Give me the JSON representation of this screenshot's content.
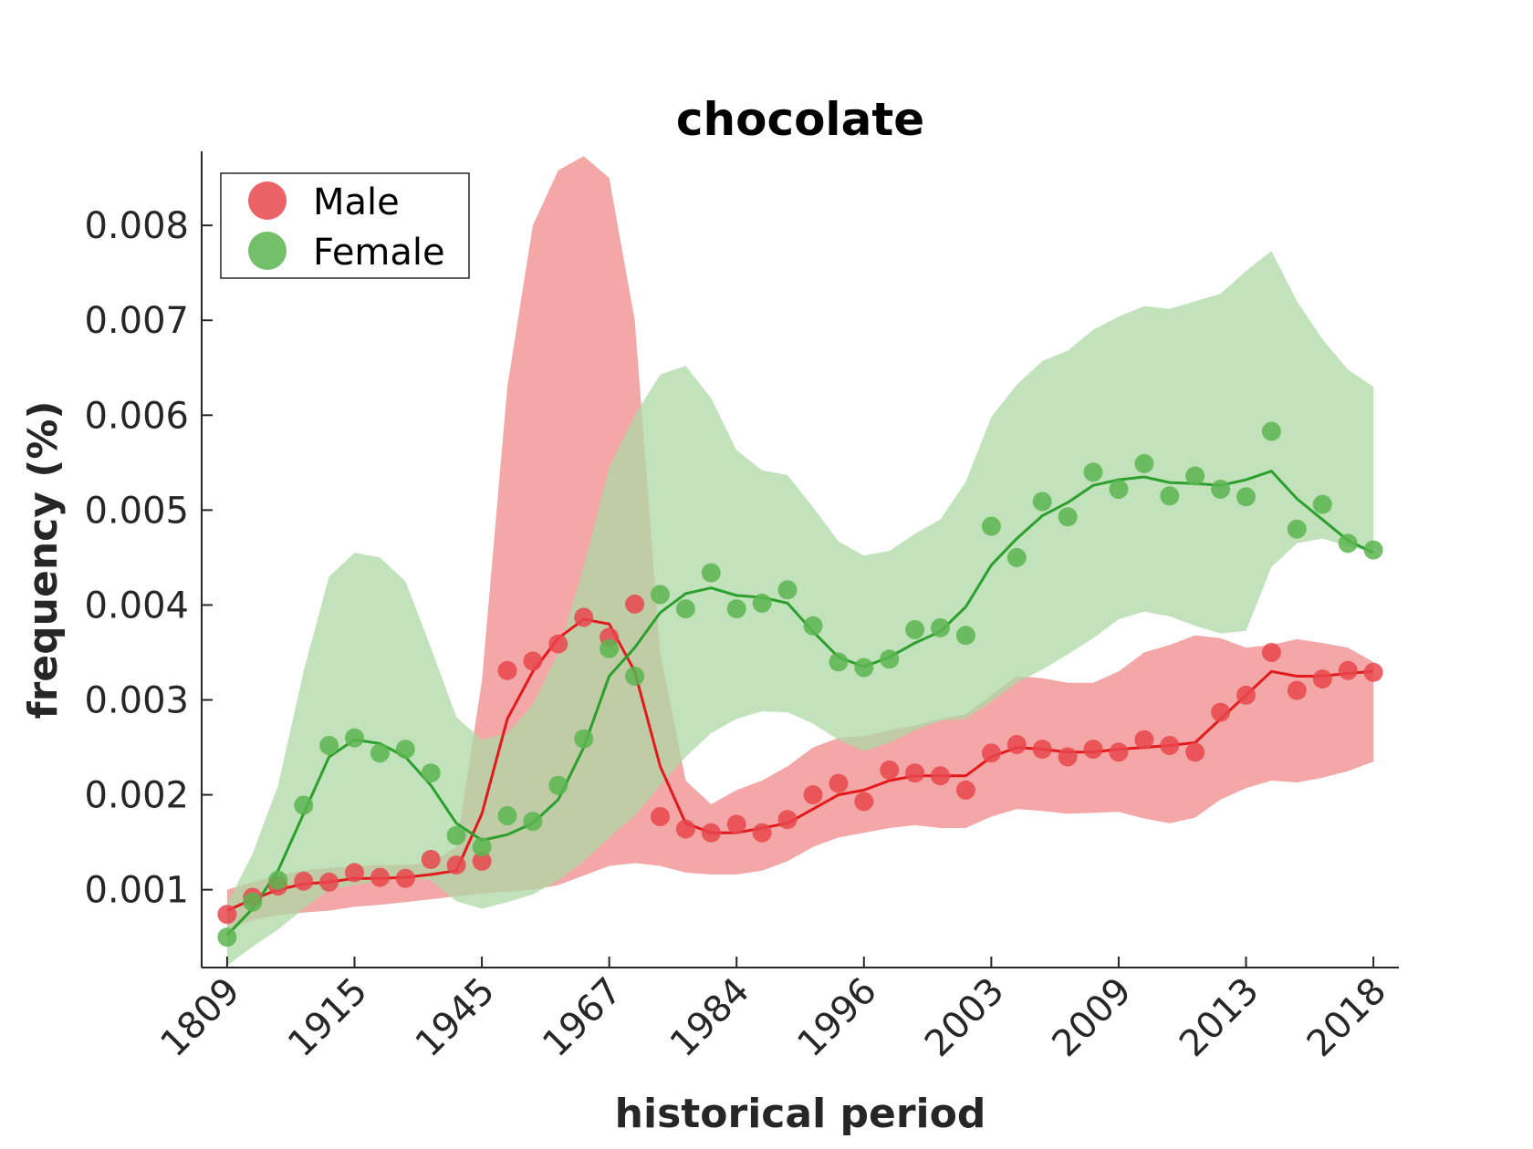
{
  "chart_data": {
    "type": "line",
    "title": "chocolate",
    "xlabel": "historical period",
    "ylabel": "frequency (%)",
    "x_tick_labels": [
      "1809",
      "1915",
      "1945",
      "1967",
      "1984",
      "1996",
      "2003",
      "2009",
      "2013",
      "2018"
    ],
    "y_ticks": [
      0.001,
      0.002,
      0.003,
      0.004,
      0.005,
      0.006,
      0.007,
      0.008
    ],
    "y_tick_labels": [
      "0.001",
      "0.002",
      "0.003",
      "0.004",
      "0.005",
      "0.006",
      "0.007",
      "0.008"
    ],
    "ylim": [
      0.00018,
      0.00878
    ],
    "xlim": [
      -1,
      46
    ],
    "legend": {
      "position": "top-left",
      "entries": [
        "Male",
        "Female"
      ]
    },
    "colors": {
      "male_dot": "#e8474c",
      "male_line": "#e31a1c",
      "male_band": "#f2a2a2",
      "female_dot": "#5cb550",
      "female_line": "#2ca02c",
      "female_band": "#aed8a6"
    },
    "series": [
      {
        "name": "Male",
        "points": [
          0.00074,
          0.00092,
          0.00104,
          0.00109,
          0.00108,
          0.00118,
          0.00113,
          0.00112,
          0.00132,
          0.00126,
          0.0013,
          0.00331,
          0.00341,
          0.00359,
          0.00387,
          0.00366,
          0.00401,
          0.00177,
          0.00164,
          0.0016,
          0.00169,
          0.0016,
          0.00174,
          0.002,
          0.00212,
          0.00193,
          0.00226,
          0.00223,
          0.0022,
          0.00205,
          0.00244,
          0.00253,
          0.00248,
          0.0024,
          0.00248,
          0.00245,
          0.00258,
          0.00252,
          0.00245,
          0.00287,
          0.00305,
          0.0035,
          0.0031,
          0.00322,
          0.00331,
          0.00329
        ],
        "trend": [
          0.00078,
          0.0009,
          0.001,
          0.00106,
          0.00108,
          0.00112,
          0.00112,
          0.00113,
          0.00116,
          0.0012,
          0.0018,
          0.0028,
          0.0033,
          0.00365,
          0.00385,
          0.0038,
          0.0033,
          0.0023,
          0.0017,
          0.0016,
          0.0016,
          0.00165,
          0.0017,
          0.00185,
          0.002,
          0.00205,
          0.00215,
          0.0022,
          0.0022,
          0.0022,
          0.0024,
          0.0025,
          0.00248,
          0.00245,
          0.00245,
          0.00248,
          0.0025,
          0.00252,
          0.00255,
          0.0028,
          0.00305,
          0.0033,
          0.00325,
          0.00325,
          0.00328,
          0.0033
        ],
        "band_upper": [
          0.001,
          0.00108,
          0.00115,
          0.0012,
          0.00123,
          0.00125,
          0.00126,
          0.00126,
          0.00128,
          0.00145,
          0.0032,
          0.0063,
          0.008,
          0.00858,
          0.00873,
          0.0085,
          0.007,
          0.0035,
          0.00215,
          0.0019,
          0.00205,
          0.00215,
          0.0023,
          0.0025,
          0.0026,
          0.00262,
          0.00268,
          0.00273,
          0.0028,
          0.00285,
          0.00305,
          0.00325,
          0.00323,
          0.00318,
          0.00318,
          0.0033,
          0.0035,
          0.00358,
          0.00368,
          0.00365,
          0.00355,
          0.00358,
          0.00364,
          0.0036,
          0.00355,
          0.0034
        ],
        "band_lower": [
          0.00058,
          0.00068,
          0.00073,
          0.00076,
          0.00078,
          0.00082,
          0.00084,
          0.00087,
          0.0009,
          0.00093,
          0.00096,
          0.00098,
          0.001,
          0.00105,
          0.00115,
          0.00125,
          0.00128,
          0.00125,
          0.00118,
          0.00116,
          0.00116,
          0.0012,
          0.0013,
          0.00145,
          0.00155,
          0.0016,
          0.00165,
          0.00168,
          0.00165,
          0.00165,
          0.00177,
          0.00185,
          0.00183,
          0.0018,
          0.00181,
          0.00182,
          0.00175,
          0.0017,
          0.00176,
          0.00195,
          0.00207,
          0.00215,
          0.00213,
          0.00218,
          0.00225,
          0.00235
        ]
      },
      {
        "name": "Female",
        "points": [
          0.0005,
          0.00087,
          0.0011,
          0.00189,
          0.00252,
          0.0026,
          0.00244,
          0.00248,
          0.00223,
          0.00157,
          0.00145,
          0.00178,
          0.00172,
          0.0021,
          0.00259,
          0.00354,
          0.00325,
          0.00411,
          0.00396,
          0.00434,
          0.00396,
          0.00402,
          0.00416,
          0.00378,
          0.0034,
          0.00334,
          0.00343,
          0.00374,
          0.00376,
          0.00368,
          0.00483,
          0.0045,
          0.00509,
          0.00493,
          0.0054,
          0.00522,
          0.00549,
          0.00515,
          0.00536,
          0.00522,
          0.00514,
          0.00583,
          0.0048,
          0.00506,
          0.00465,
          0.00458
        ],
        "trend": [
          0.00052,
          0.0008,
          0.0012,
          0.0018,
          0.0024,
          0.00258,
          0.00254,
          0.0024,
          0.0021,
          0.0017,
          0.00152,
          0.00158,
          0.0017,
          0.00195,
          0.0025,
          0.00325,
          0.00355,
          0.00392,
          0.00412,
          0.00418,
          0.0041,
          0.00408,
          0.00402,
          0.00372,
          0.00345,
          0.00335,
          0.00345,
          0.0036,
          0.00372,
          0.00398,
          0.00442,
          0.0047,
          0.00494,
          0.00508,
          0.00526,
          0.00532,
          0.00535,
          0.00529,
          0.00528,
          0.00526,
          0.00532,
          0.00541,
          0.00512,
          0.0049,
          0.00468,
          0.00455
        ],
        "band_upper": [
          0.00085,
          0.00138,
          0.0021,
          0.0033,
          0.0043,
          0.00455,
          0.0045,
          0.00425,
          0.00355,
          0.00282,
          0.00258,
          0.00265,
          0.00295,
          0.0035,
          0.0044,
          0.00545,
          0.006,
          0.00643,
          0.00652,
          0.00618,
          0.00563,
          0.00542,
          0.00537,
          0.00503,
          0.00467,
          0.00452,
          0.00457,
          0.00475,
          0.0049,
          0.0053,
          0.00598,
          0.00632,
          0.00657,
          0.00668,
          0.0069,
          0.00704,
          0.00715,
          0.00712,
          0.0072,
          0.00728,
          0.00752,
          0.00773,
          0.0072,
          0.0068,
          0.00648,
          0.0063
        ],
        "band_lower": [
          0.0002,
          0.0004,
          0.00058,
          0.0008,
          0.001,
          0.00105,
          0.0011,
          0.00113,
          0.0011,
          0.00088,
          0.0008,
          0.00087,
          0.00095,
          0.0011,
          0.0013,
          0.00155,
          0.00178,
          0.0021,
          0.0024,
          0.00265,
          0.0028,
          0.00288,
          0.00287,
          0.00275,
          0.00258,
          0.00246,
          0.00255,
          0.00268,
          0.00278,
          0.0028,
          0.00298,
          0.00318,
          0.00332,
          0.00348,
          0.00365,
          0.00385,
          0.00393,
          0.00388,
          0.00378,
          0.0037,
          0.00373,
          0.0044,
          0.00465,
          0.0047,
          0.00462,
          0.00455
        ]
      }
    ]
  }
}
